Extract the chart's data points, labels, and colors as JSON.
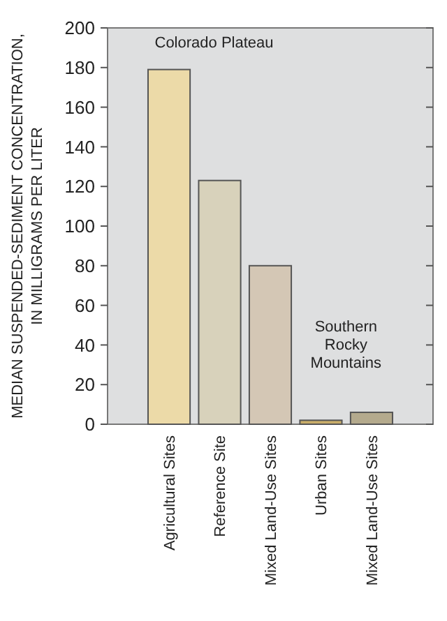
{
  "chart_data": {
    "type": "bar",
    "ylabel": "MEDIAN SUSPENDED-SEDIMENT CONCENTRATION,\nIN MILLIGRAMS PER LITER",
    "categories": [
      "Agricultural Sites",
      "Reference Site",
      "Mixed Land-Use Sites",
      "Urban Sites",
      "Mixed Land-Use Sites"
    ],
    "values": [
      179,
      123,
      80,
      2,
      6
    ],
    "colors": [
      "#ecdaa8",
      "#d8d2bb",
      "#d4c7b5",
      "#c9ad6a",
      "#b4aa8d"
    ],
    "ylim": [
      0,
      200
    ],
    "yticks": [
      0,
      20,
      40,
      60,
      80,
      100,
      120,
      140,
      160,
      180,
      200
    ],
    "annotations": [
      "Colorado Plateau",
      "Southern\nRocky\nMountains"
    ]
  }
}
